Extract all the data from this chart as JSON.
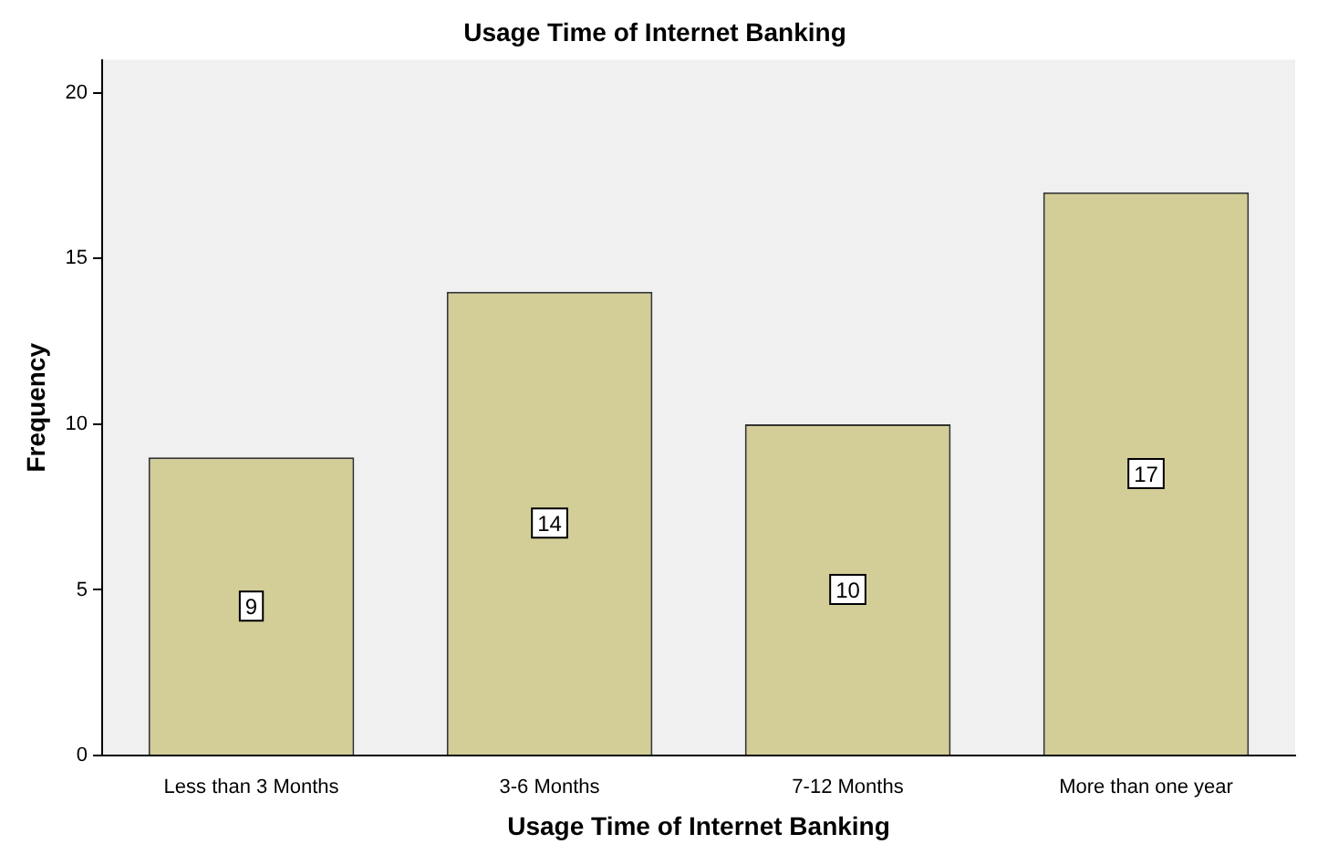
{
  "chart_data": {
    "type": "bar",
    "title": "Usage Time of Internet Banking",
    "xlabel": "Usage Time of Internet Banking",
    "ylabel": "Frequency",
    "categories": [
      "Less than 3 Months",
      "3-6 Months",
      "7-12 Months",
      "More than one year"
    ],
    "values": [
      9,
      14,
      10,
      17
    ],
    "color": "#d3ce97",
    "ylim": [
      0,
      21
    ],
    "yticks": [
      0,
      5,
      10,
      15,
      20
    ],
    "grid": false,
    "legend": false,
    "data_labels": true
  }
}
